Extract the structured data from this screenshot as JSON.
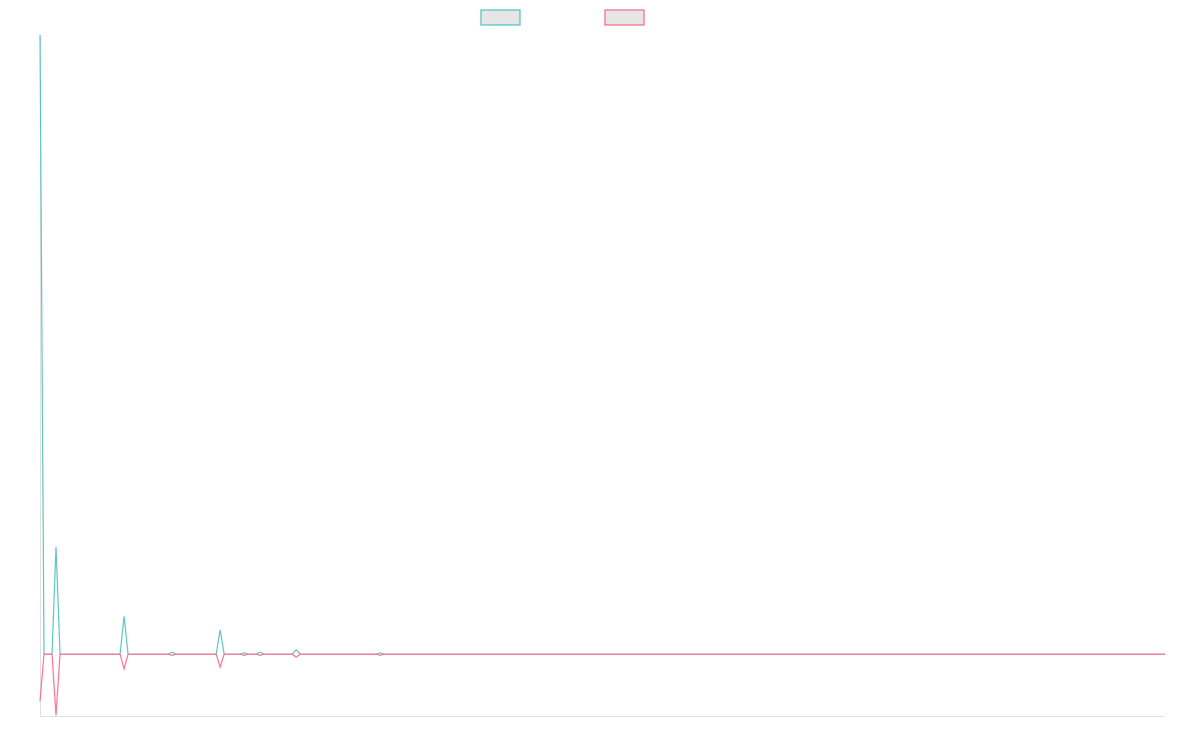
{
  "chart_data": {
    "type": "line",
    "title": "",
    "xlabel": "",
    "ylabel": "",
    "xlim": [
      0,
      281
    ],
    "ylim": [
      -0.1,
      1.0
    ],
    "grid": false,
    "legend_placement": "top",
    "series": [
      {
        "color": "#4bc0c0",
        "legend_fill": "#e6e6e6",
        "points": [
          [
            0,
            1.0
          ],
          [
            1,
            0
          ],
          [
            3,
            0
          ],
          [
            4,
            0.173
          ],
          [
            5,
            0
          ],
          [
            20,
            0
          ],
          [
            21,
            0.061
          ],
          [
            22,
            0
          ],
          [
            32,
            0
          ],
          [
            33,
            0.003
          ],
          [
            34,
            0
          ],
          [
            44,
            0
          ],
          [
            45,
            0.039
          ],
          [
            46,
            0
          ],
          [
            50,
            0
          ],
          [
            51,
            0.002
          ],
          [
            52,
            0
          ],
          [
            54,
            0
          ],
          [
            55,
            0.003
          ],
          [
            56,
            0
          ],
          [
            63,
            0
          ],
          [
            64,
            0.007
          ],
          [
            65,
            0
          ],
          [
            84,
            0
          ],
          [
            85,
            0.002
          ],
          [
            86,
            0
          ],
          [
            281,
            0
          ]
        ]
      },
      {
        "color": "#ff6384",
        "legend_fill": "#e6e6e6",
        "points": [
          [
            0,
            -0.076
          ],
          [
            1,
            0
          ],
          [
            3,
            0
          ],
          [
            4,
            -0.099
          ],
          [
            5,
            0
          ],
          [
            20,
            0
          ],
          [
            21,
            -0.024
          ],
          [
            22,
            0
          ],
          [
            32,
            0
          ],
          [
            33,
            -0.002
          ],
          [
            34,
            0
          ],
          [
            44,
            0
          ],
          [
            45,
            -0.021
          ],
          [
            46,
            0
          ],
          [
            50,
            0
          ],
          [
            51,
            -0.002
          ],
          [
            52,
            0
          ],
          [
            54,
            0
          ],
          [
            55,
            -0.002
          ],
          [
            56,
            0
          ],
          [
            63,
            0
          ],
          [
            64,
            -0.005
          ],
          [
            65,
            0
          ],
          [
            84,
            0
          ],
          [
            85,
            -0.002
          ],
          [
            86,
            0
          ],
          [
            281,
            0
          ]
        ]
      }
    ]
  }
}
